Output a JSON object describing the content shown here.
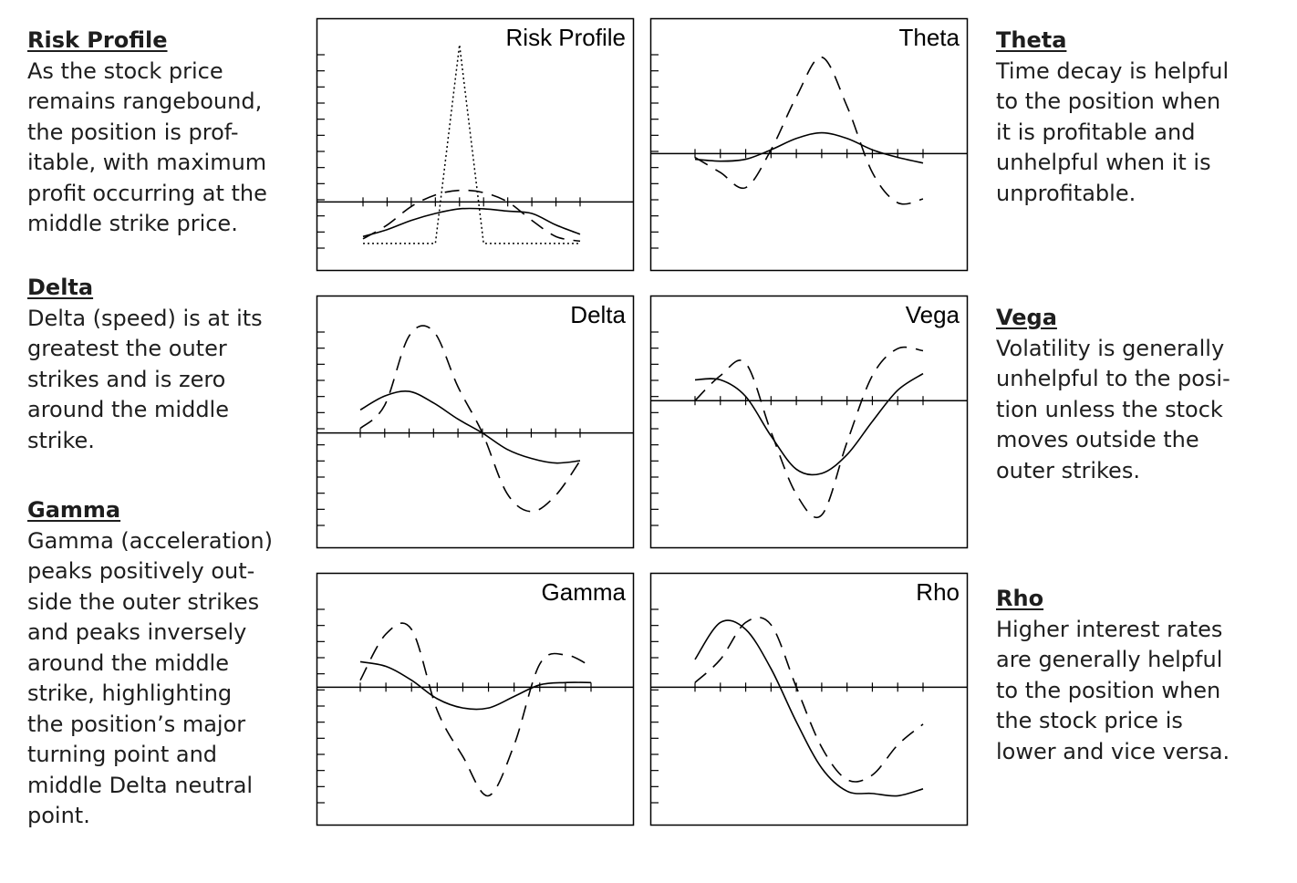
{
  "descriptions": {
    "risk_profile": {
      "heading": "Risk Profile",
      "text": "As the stock price\nremains rangebound,\nthe position is prof-\nitable, with maximum\nprofit occurring at the\nmiddle strike price."
    },
    "delta": {
      "heading": "Delta",
      "text": "Delta (speed) is at its\ngreatest the outer\nstrikes and is zero\naround the middle\nstrike."
    },
    "gamma": {
      "heading": "Gamma",
      "text": "Gamma (acceleration)\npeaks positively out-\nside the outer strikes\nand peaks inversely\naround the middle\nstrike, highlighting\nthe position’s major\nturning point and\nmiddle Delta neutral\npoint."
    },
    "theta": {
      "heading": "Theta",
      "text": "Time decay is helpful\nto the position when\nit is profitable and\nunhelpful when it is\nunprofitable."
    },
    "vega": {
      "heading": "Vega",
      "text": "Volatility is generally\nunhelpful to the posi-\ntion unless the stock\nmoves outside the\nouter strikes."
    },
    "rho": {
      "heading": "Rho",
      "text": "Higher interest rates\nare generally helpful\nto the position when\nthe stock price is\nlower and vice versa."
    }
  },
  "chart_data": [
    {
      "type": "line",
      "title": "Risk Profile",
      "x": [
        0,
        1,
        2,
        3,
        4,
        5,
        6,
        7,
        8,
        9
      ],
      "ylim": [
        -2,
        7
      ],
      "grid": false,
      "series": [
        {
          "style": "dotted",
          "values": [
            -1.8,
            -1.8,
            -1.8,
            -1.8,
            6.8,
            -1.8,
            -1.8,
            -1.8,
            -1.8,
            -1.8
          ]
        },
        {
          "style": "dashed",
          "values": [
            -1.6,
            -1.0,
            -0.2,
            0.3,
            0.5,
            0.4,
            0.0,
            -0.8,
            -1.5,
            -1.7
          ]
        },
        {
          "style": "solid",
          "values": [
            -1.5,
            -1.2,
            -0.8,
            -0.5,
            -0.3,
            -0.3,
            -0.4,
            -0.5,
            -1.0,
            -1.4
          ]
        }
      ]
    },
    {
      "type": "line",
      "title": "Theta",
      "x": [
        0,
        1,
        2,
        3,
        4,
        5,
        6,
        7,
        8,
        9
      ],
      "ylim": [
        -5,
        6
      ],
      "grid": false,
      "series": [
        {
          "style": "dashed",
          "values": [
            -0.2,
            -1.0,
            -1.8,
            0.2,
            3.0,
            5.1,
            2.5,
            -1.0,
            -2.6,
            -2.4
          ]
        },
        {
          "style": "solid",
          "values": [
            -0.3,
            -0.4,
            -0.3,
            0.2,
            0.8,
            1.1,
            0.8,
            0.2,
            -0.2,
            -0.5
          ]
        }
      ]
    },
    {
      "type": "line",
      "title": "Delta",
      "x": [
        0,
        1,
        2,
        3,
        4,
        5,
        6,
        7,
        8,
        9
      ],
      "ylim": [
        -4,
        5
      ],
      "grid": false,
      "series": [
        {
          "style": "dashed",
          "values": [
            0.2,
            1.2,
            4.2,
            4.4,
            2.0,
            0.0,
            -2.6,
            -3.4,
            -2.7,
            -1.2
          ]
        },
        {
          "style": "solid",
          "values": [
            1.0,
            1.6,
            1.8,
            1.3,
            0.6,
            0.0,
            -0.7,
            -1.1,
            -1.3,
            -1.2
          ]
        }
      ]
    },
    {
      "type": "line",
      "title": "Vega",
      "x": [
        0,
        1,
        2,
        3,
        4,
        5,
        6,
        7,
        8,
        9
      ],
      "ylim": [
        -6,
        4
      ],
      "grid": false,
      "series": [
        {
          "style": "dashed",
          "values": [
            0.0,
            1.2,
            1.8,
            -1.5,
            -4.5,
            -5.5,
            -2.0,
            1.2,
            2.5,
            2.4
          ]
        },
        {
          "style": "solid",
          "values": [
            1.0,
            1.0,
            0.2,
            -1.7,
            -3.3,
            -3.5,
            -2.6,
            -1.0,
            0.5,
            1.3
          ]
        }
      ]
    },
    {
      "type": "line",
      "title": "Gamma",
      "x": [
        0,
        1,
        2,
        3,
        4,
        5,
        6,
        7,
        8,
        9
      ],
      "ylim": [
        -5,
        4
      ],
      "grid": false,
      "series": [
        {
          "style": "dashed",
          "values": [
            0.3,
            2.3,
            2.5,
            -1.0,
            -3.0,
            -4.7,
            -2.5,
            1.0,
            1.4,
            0.9
          ]
        },
        {
          "style": "solid",
          "values": [
            1.1,
            0.9,
            0.3,
            -0.5,
            -0.9,
            -0.9,
            -0.4,
            0.1,
            0.2,
            0.2
          ]
        }
      ]
    },
    {
      "type": "line",
      "title": "Rho",
      "x": [
        0,
        1,
        2,
        3,
        4,
        5,
        6,
        7,
        8,
        9
      ],
      "ylim": [
        -5,
        4
      ],
      "grid": false,
      "series": [
        {
          "style": "dashed",
          "values": [
            0.2,
            1.2,
            2.8,
            2.7,
            0.0,
            -2.6,
            -4.0,
            -3.8,
            -2.5,
            -1.6
          ]
        },
        {
          "style": "solid",
          "values": [
            1.2,
            2.8,
            2.5,
            0.8,
            -1.5,
            -3.5,
            -4.5,
            -4.6,
            -4.7,
            -4.4
          ]
        }
      ]
    }
  ]
}
